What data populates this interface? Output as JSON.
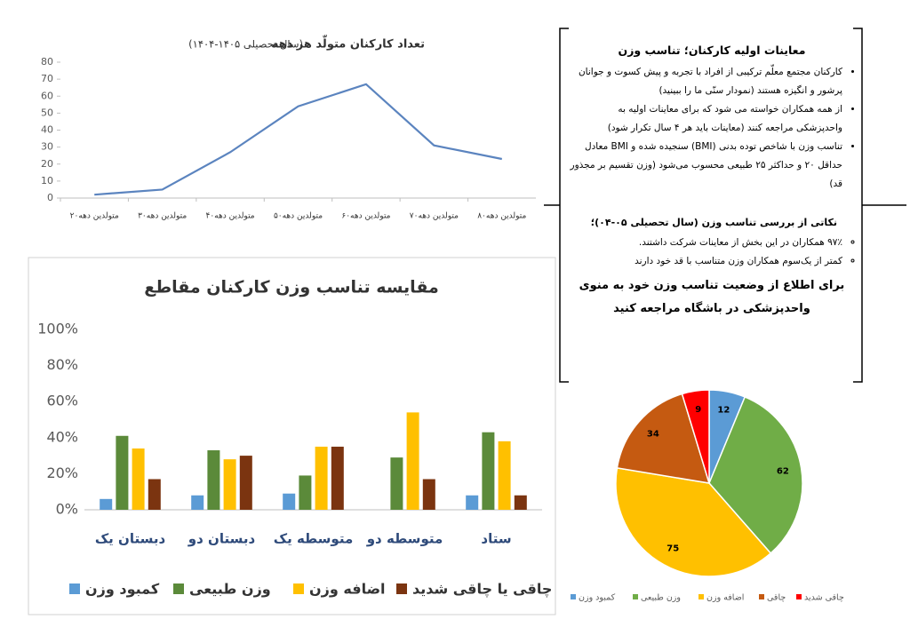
{
  "chart_data": [
    {
      "type": "line",
      "title": "تعداد کارکنان متولّد هر دهه",
      "subtitle": "(سال تحصیلی ۱۴۰۵-۱۴۰۴)",
      "categories": [
        "متولدین دهه۲۰",
        "متولدین دهه۳۰",
        "متولدین دهه۴۰",
        "متولدین دهه۵۰",
        "متولدین دهه۶۰",
        "متولدین دهه۷۰",
        "متولدین دهه۸۰"
      ],
      "values": [
        2,
        5,
        27,
        54,
        67,
        31,
        23
      ],
      "color": "#5b84bf",
      "ylim": [
        0,
        80
      ],
      "yticks": [
        0,
        10,
        20,
        30,
        40,
        50,
        60,
        70,
        80
      ],
      "grid": false
    },
    {
      "type": "bar",
      "title": "مقایسه  تناسب وزن کارکنان مقاطع",
      "categories": [
        "دبستان یک",
        "دبستان دو",
        "متوسطه یک",
        "متوسطه دو",
        "ستاد"
      ],
      "series": [
        {
          "name": "کمبود وزن",
          "color": "#5b9bd5",
          "values": [
            6,
            8,
            9,
            0,
            8
          ]
        },
        {
          "name": "وزن طبیعی",
          "color": "#5b8a3a",
          "values": [
            41,
            33,
            19,
            29,
            43
          ]
        },
        {
          "name": "اضافه وزن",
          "color": "#ffc000",
          "values": [
            34,
            28,
            35,
            54,
            38
          ]
        },
        {
          "name": "چاقی یا چاقی شدید",
          "color": "#7b3410",
          "values": [
            17,
            30,
            35,
            17,
            8
          ]
        }
      ],
      "ylim": [
        0,
        100
      ],
      "yticks": [
        {
          "value": 0,
          "label": "0%"
        },
        {
          "value": 20,
          "label": "20%"
        },
        {
          "value": 40,
          "label": "40%"
        },
        {
          "value": 60,
          "label": "60%"
        },
        {
          "value": 80,
          "label": "80%"
        },
        {
          "value": 100,
          "label": "100%"
        }
      ],
      "grid": false
    },
    {
      "type": "pie",
      "categories": [
        "کمبود وزن",
        "وزن طبیعی",
        "اضافه وزن",
        "چاقی",
        "چاقی شدید"
      ],
      "values": [
        12,
        62,
        75,
        34,
        9
      ],
      "colors": [
        "#5b9bd5",
        "#70ad47",
        "#ffc000",
        "#c55a11",
        "#ff0000"
      ]
    }
  ],
  "notes": {
    "title": "معاینات اولیه کارکنان؛ تناسب وزن",
    "bullets": [
      "کارکنان مجتمع معلّم ترکیبی از افراد با تجربه و پیش کسوت و جوانان پرشور و انگیزه هستند (نمودار سنّی ما را ببینید)",
      "از همه همکاران خواسته می شود که برای معاینات اولیه به واحدپزشکی مراجعه کنند (معاینات باید هر ۴ سال تکرار شود)",
      "تناسب وزن با شاخص توده بدنی (BMI) سنجیده شده و BMI معادل حداقل ۲۰ و حداکثر ۲۵ طبیعی محسوب می‌شود (وزن تقسیم بر مجذور قد)"
    ],
    "findings_title": "نکاتی از بررسی تناسب وزن (سال تحصیلی ۰۵-۰۴)؛",
    "findings": [
      "۹۷٪ همکاران در این بخش از معاینات شرکت داشتند.",
      "کمتر از یک‌سوم همکاران وزن متناسب با قد خود دارند"
    ],
    "call_to_action": "برای اطلاع از وضعیت تناسب وزن خود به منوی واحدپزشکی در باشگاه مراجعه کنید"
  }
}
